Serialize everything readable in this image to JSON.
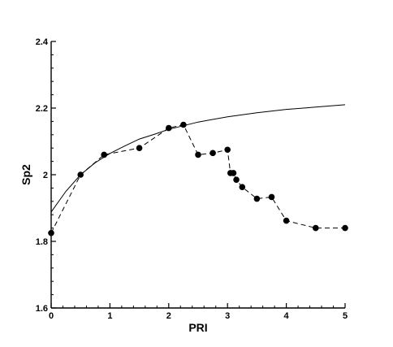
{
  "chart_data": {
    "type": "scatter",
    "xlabel": "PRI",
    "ylabel": "Sp2",
    "xlim": [
      0,
      5
    ],
    "ylim": [
      1.6,
      2.4
    ],
    "x_ticks": [
      0,
      1,
      2,
      3,
      4,
      5
    ],
    "x_tick_labels": [
      "0",
      "1",
      "2",
      "3",
      "4",
      "5"
    ],
    "y_ticks": [
      1.6,
      1.8,
      2.0,
      2.2,
      2.4
    ],
    "y_tick_labels": [
      "1.6",
      "1.8",
      "2",
      "2.2",
      "2.4"
    ],
    "grid": false,
    "series": [
      {
        "style": "dashed-with-markers",
        "x": [
          0,
          0.5,
          0.9,
          1.5,
          2.0,
          2.25,
          2.5,
          2.75,
          3.0,
          3.05,
          3.1,
          3.15,
          3.25,
          3.5,
          3.75,
          4.0,
          4.5,
          5.0
        ],
        "y": [
          1.825,
          2.0,
          2.06,
          2.08,
          2.14,
          2.15,
          2.06,
          2.065,
          2.075,
          2.005,
          2.005,
          1.985,
          1.963,
          1.928,
          1.933,
          1.862,
          1.84,
          1.84
        ]
      },
      {
        "style": "solid-curve",
        "x": [
          0,
          0.25,
          0.5,
          0.75,
          1.0,
          1.25,
          1.5,
          1.75,
          2.0,
          2.5,
          3.0,
          3.5,
          4.0,
          4.5,
          5.0
        ],
        "y": [
          1.888,
          1.95,
          2.0,
          2.036,
          2.064,
          2.086,
          2.107,
          2.121,
          2.136,
          2.158,
          2.174,
          2.186,
          2.196,
          2.203,
          2.21
        ]
      }
    ]
  }
}
